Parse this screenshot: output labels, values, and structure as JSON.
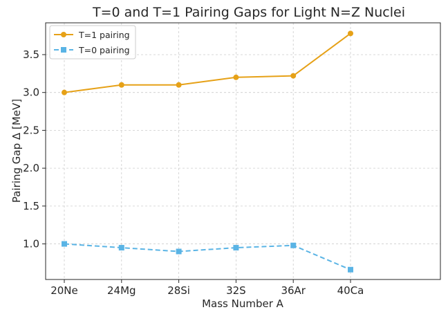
{
  "chart_data": {
    "type": "line",
    "title": "T=0 and T=1 Pairing Gaps for Light N=Z Nuclei",
    "xlabel": "Mass Number A",
    "ylabel": "Pairing Gap Δ [MeV]",
    "categories": [
      "20Ne",
      "24Mg",
      "28Si",
      "32S",
      "36Ar",
      "40Ca"
    ],
    "ylim": [
      0.53,
      3.92
    ],
    "yticks": [
      1.0,
      1.5,
      2.0,
      2.5,
      3.0,
      3.5
    ],
    "ytick_labels": [
      "1.0",
      "1.5",
      "2.0",
      "2.5",
      "3.0",
      "3.5"
    ],
    "grid": true,
    "legend_position": "top-left",
    "series": [
      {
        "name": "T=1 pairing",
        "values": [
          3.0,
          3.1,
          3.1,
          3.2,
          3.22,
          3.78
        ],
        "color": "#e6a117",
        "marker": "circle",
        "line_style": "solid"
      },
      {
        "name": "T=0 pairing",
        "values": [
          1.0,
          0.95,
          0.9,
          0.95,
          0.98,
          0.66
        ],
        "color": "#5ab4e5",
        "marker": "square",
        "line_style": "dashed"
      }
    ]
  }
}
